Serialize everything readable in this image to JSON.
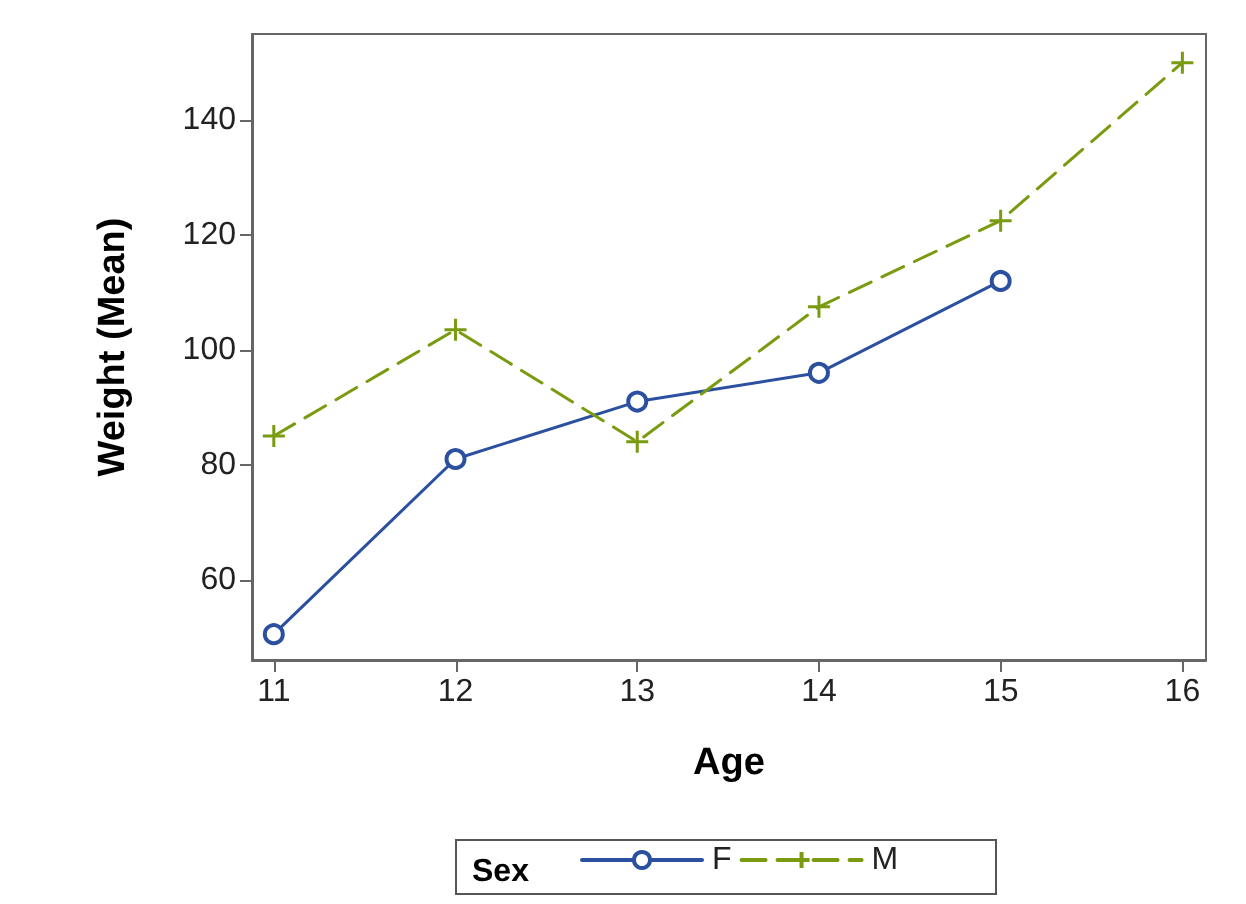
{
  "chart_data": {
    "type": "line",
    "xlabel": "Age",
    "ylabel": "Weight (Mean)",
    "legend_title": "Sex",
    "x": [
      11,
      12,
      13,
      14,
      15,
      16
    ],
    "series": [
      {
        "name": "F",
        "color": "#2b50a0",
        "marker": "circle",
        "line_style": "solid",
        "values": [
          50.5,
          81,
          91,
          96,
          112,
          null
        ]
      },
      {
        "name": "M",
        "color": "#7a9a10",
        "marker": "cross",
        "line_style": "dashed",
        "values": [
          85,
          103.5,
          84,
          107.5,
          122.5,
          150
        ]
      }
    ],
    "xlim": [
      10.88,
      16.13
    ],
    "xticks": [
      11,
      12,
      13,
      14,
      15,
      16
    ],
    "ylim": [
      46,
      155
    ],
    "yticks": [
      60,
      80,
      100,
      120,
      140
    ],
    "grid": false,
    "legend": "bottom"
  }
}
